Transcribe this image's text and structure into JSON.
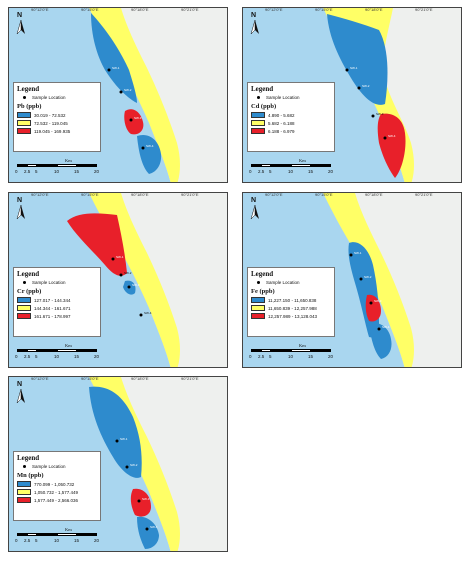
{
  "common": {
    "north_letter": "N",
    "legend_title": "Legend",
    "sample_label": "Sample Location",
    "scale_unit": "Km",
    "scale_ticks": [
      "0",
      "2.5",
      "5",
      "10",
      "15",
      "20"
    ],
    "coord_top": [
      "90°12'0\"E",
      "90°15'0\"E",
      "90°18'0\"E",
      "90°21'0\"E"
    ],
    "coord_left": [
      "22°0'0\"N",
      "21°57'0\"N",
      "21°54'0\"N",
      "21°51'0\"N"
    ]
  },
  "colors": {
    "sea": "#a9d6ef",
    "low": "#2e8bcd",
    "medium": "#ffff66",
    "high": "#e8202a",
    "land": "#eef0ee"
  },
  "panels": [
    {
      "id": "pb",
      "param": "Pb (ppb)",
      "ranges": [
        "30.019 - 72.532",
        "72.532 - 119.045",
        "119.045 - 169.935"
      ],
      "samples": [
        "SW-1",
        "SW-2",
        "SW-3",
        "SW-4"
      ]
    },
    {
      "id": "cd",
      "param": "Cd (ppb)",
      "ranges": [
        "4.890 - 5.682",
        "5.682 - 6.188",
        "6.188 - 6.979"
      ],
      "samples": [
        "SW-1",
        "SW-2",
        "SW-3",
        "SW-4"
      ]
    },
    {
      "id": "cr",
      "param": "Cr (ppb)",
      "ranges": [
        "127.017 - 144.344",
        "144.344 - 161.671",
        "161.671 - 178.997"
      ],
      "samples": [
        "SW-1",
        "SW-2",
        "SW-3",
        "SW-4"
      ]
    },
    {
      "id": "fe",
      "param": "Fe (ppb)",
      "ranges": [
        "11,227.150 - 11,650.838",
        "11,650.839 - 12,257.988",
        "12,257.989 - 13,128.043"
      ],
      "samples": [
        "SW-1",
        "SW-2",
        "SW-3",
        "SW-4"
      ]
    },
    {
      "id": "mn",
      "param": "Mn (ppb)",
      "ranges": [
        "770.099 - 1,050.732",
        "1,050.732 - 1,577.449",
        "1,577.449 - 2,566.036"
      ],
      "samples": [
        "SW-1",
        "SW-2",
        "SW-3",
        "SW-4"
      ]
    }
  ]
}
